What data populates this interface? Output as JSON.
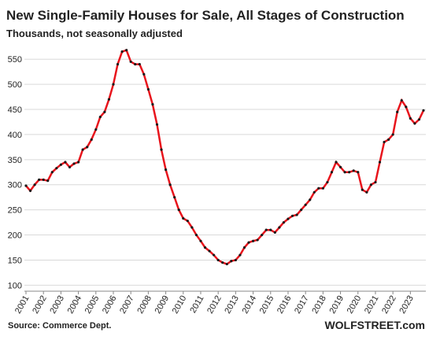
{
  "chart_data": {
    "type": "line",
    "title": "New Single-Family Houses for Sale, All Stages of Construction",
    "subtitle": "Thousands, not seasonally adjusted",
    "source": "Source: Commerce Dept.",
    "brand": "WOLFSTREET.com",
    "categories": [
      "2001",
      null,
      null,
      null,
      "2002",
      null,
      null,
      null,
      "2003",
      null,
      null,
      null,
      "2004",
      null,
      null,
      null,
      "2005",
      null,
      null,
      null,
      "2006",
      null,
      null,
      null,
      "2007",
      null,
      null,
      null,
      "2008",
      null,
      null,
      null,
      "2009",
      null,
      null,
      null,
      "2010",
      null,
      null,
      null,
      "2011",
      null,
      null,
      null,
      "2012",
      null,
      null,
      null,
      "2013",
      null,
      null,
      null,
      "2014",
      null,
      null,
      null,
      "2015",
      null,
      null,
      null,
      "2016",
      null,
      null,
      null,
      "2017",
      null,
      null,
      null,
      "2018",
      null,
      null,
      null,
      "2019",
      null,
      null,
      null,
      "2020",
      null,
      null,
      null,
      "2021",
      null,
      null,
      null,
      "2022",
      null,
      null,
      null,
      "2023",
      null,
      null,
      null
    ],
    "series": [
      {
        "name": "New single-family houses for sale",
        "color": "#e8141c",
        "marker_color": "#1a1a1a",
        "values": [
          298,
          288,
          300,
          310,
          310,
          308,
          325,
          333,
          340,
          345,
          335,
          342,
          345,
          370,
          375,
          390,
          410,
          435,
          445,
          470,
          500,
          540,
          565,
          568,
          545,
          540,
          540,
          520,
          490,
          460,
          420,
          370,
          330,
          300,
          275,
          250,
          233,
          228,
          215,
          200,
          188,
          175,
          168,
          160,
          150,
          145,
          142,
          148,
          150,
          160,
          175,
          185,
          188,
          190,
          200,
          210,
          210,
          205,
          215,
          225,
          232,
          238,
          240,
          250,
          260,
          270,
          285,
          293,
          293,
          305,
          325,
          345,
          335,
          325,
          325,
          328,
          325,
          290,
          285,
          300,
          305,
          345,
          385,
          390,
          400,
          445,
          468,
          455,
          432,
          422,
          430,
          448
        ]
      }
    ],
    "ylim": [
      88,
      577
    ],
    "yticks": [
      100,
      150,
      200,
      250,
      300,
      350,
      400,
      450,
      500,
      550
    ],
    "grid": true
  }
}
